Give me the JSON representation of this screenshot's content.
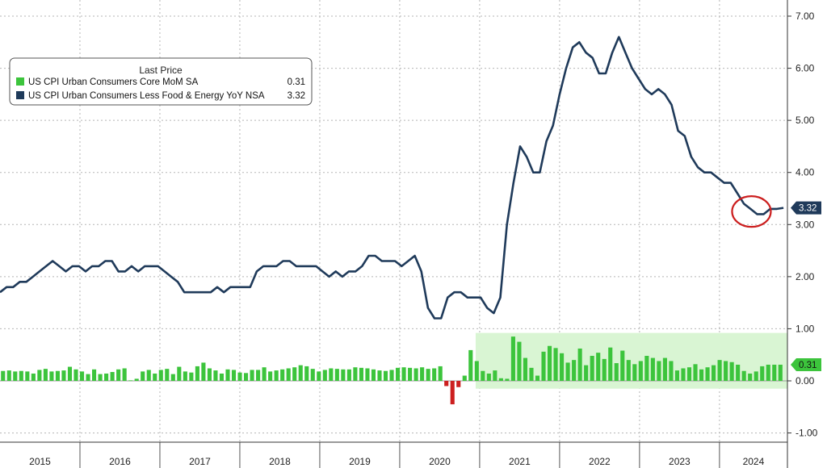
{
  "chart_data": {
    "type": "line",
    "legend": {
      "title": "Last Price",
      "placement": "top-left"
    },
    "series": [
      {
        "name": "US CPI Urban Consumers Core MoM SA",
        "kind": "bar",
        "color": "#3cc43c",
        "negative_color": "#cc1f1f",
        "last_value": "0.31",
        "values": [
          0.19,
          0.2,
          0.18,
          0.19,
          0.18,
          0.14,
          0.21,
          0.23,
          0.18,
          0.19,
          0.2,
          0.27,
          0.22,
          0.18,
          0.13,
          0.22,
          0.13,
          0.14,
          0.17,
          0.22,
          0.24,
          0.01,
          0.04,
          0.18,
          0.21,
          0.14,
          0.21,
          0.23,
          0.13,
          0.27,
          0.18,
          0.16,
          0.28,
          0.35,
          0.24,
          0.2,
          0.14,
          0.22,
          0.21,
          0.16,
          0.15,
          0.21,
          0.21,
          0.26,
          0.18,
          0.2,
          0.22,
          0.24,
          0.26,
          0.3,
          0.28,
          0.23,
          0.18,
          0.21,
          0.24,
          0.23,
          0.22,
          0.22,
          0.26,
          0.25,
          0.24,
          0.22,
          0.2,
          0.19,
          0.21,
          0.25,
          0.26,
          0.25,
          0.24,
          0.26,
          0.23,
          0.24,
          0.28,
          -0.1,
          -0.45,
          -0.12,
          0.1,
          0.59,
          0.38,
          0.19,
          0.14,
          0.2,
          0.05,
          0.04,
          0.85,
          0.75,
          0.44,
          0.25,
          0.1,
          0.56,
          0.67,
          0.63,
          0.53,
          0.35,
          0.4,
          0.62,
          0.3,
          0.48,
          0.54,
          0.42,
          0.64,
          0.34,
          0.58,
          0.4,
          0.32,
          0.38,
          0.48,
          0.44,
          0.38,
          0.44,
          0.38,
          0.2,
          0.24,
          0.26,
          0.32,
          0.22,
          0.26,
          0.3,
          0.4,
          0.38,
          0.36,
          0.31,
          0.19,
          0.14,
          0.18,
          0.28,
          0.31,
          0.31,
          0.31
        ]
      },
      {
        "name": "US CPI Urban Consumers Less Food & Energy YoY NSA",
        "kind": "line",
        "color": "#1f3a5a",
        "last_value": "3.32",
        "values": [
          1.7,
          1.8,
          1.8,
          1.9,
          1.9,
          2.0,
          2.1,
          2.2,
          2.3,
          2.2,
          2.1,
          2.2,
          2.2,
          2.1,
          2.2,
          2.2,
          2.3,
          2.3,
          2.1,
          2.1,
          2.2,
          2.1,
          2.2,
          2.2,
          2.2,
          2.1,
          2.0,
          1.9,
          1.7,
          1.7,
          1.7,
          1.7,
          1.7,
          1.8,
          1.7,
          1.8,
          1.8,
          1.8,
          1.8,
          2.1,
          2.2,
          2.2,
          2.2,
          2.3,
          2.3,
          2.2,
          2.2,
          2.2,
          2.2,
          2.1,
          2.0,
          2.1,
          2.0,
          2.1,
          2.1,
          2.2,
          2.4,
          2.4,
          2.3,
          2.3,
          2.3,
          2.2,
          2.3,
          2.4,
          2.1,
          1.4,
          1.2,
          1.2,
          1.6,
          1.7,
          1.7,
          1.6,
          1.6,
          1.6,
          1.4,
          1.3,
          1.6,
          3.0,
          3.8,
          4.5,
          4.3,
          4.0,
          4.0,
          4.6,
          4.9,
          5.5,
          6.0,
          6.4,
          6.5,
          6.3,
          6.2,
          5.9,
          5.9,
          6.3,
          6.6,
          6.3,
          6.0,
          5.8,
          5.6,
          5.5,
          5.6,
          5.5,
          5.3,
          4.8,
          4.7,
          4.3,
          4.1,
          4.0,
          4.0,
          3.9,
          3.8,
          3.8,
          3.6,
          3.4,
          3.3,
          3.2,
          3.2,
          3.3,
          3.3,
          3.32
        ]
      }
    ],
    "x_labels": [
      "2015",
      "2016",
      "2017",
      "2018",
      "2019",
      "2020",
      "2021",
      "2022",
      "2023",
      "2024"
    ],
    "xlim": [
      2015.0,
      2024.85
    ],
    "y_ticks": [
      "7.00",
      "6.00",
      "5.00",
      "4.00",
      "3.00",
      "2.00",
      "1.00",
      "0.00",
      "-1.00"
    ],
    "ylim": [
      -1.0,
      7.0
    ],
    "grid": true,
    "annotations": {
      "highlight_region": {
        "x_from": 2020.95,
        "x_to": 2024.85,
        "y_from": -0.15,
        "y_to": 0.92,
        "color": "#d9f5d3"
      },
      "circle_marker": {
        "x_center": 2024.4,
        "y_center": 3.25,
        "color": "#cc1f1f"
      }
    }
  }
}
